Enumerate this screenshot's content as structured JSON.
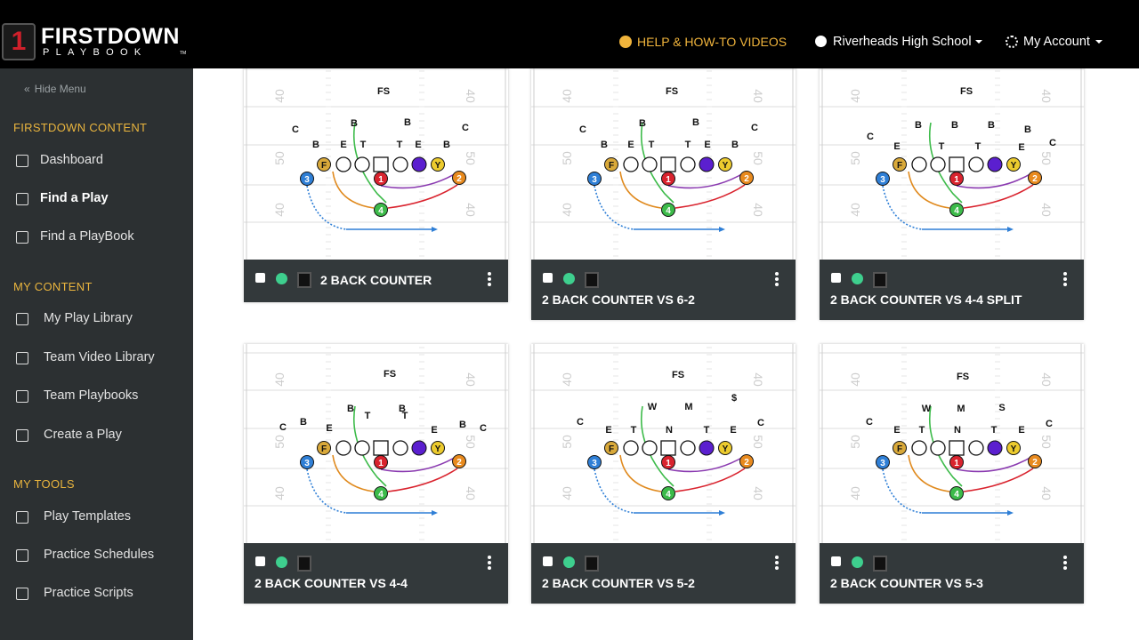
{
  "header": {
    "logo": {
      "mark": "1",
      "name": "FIRSTDOWN",
      "sub": "PLAYBOOK",
      "tm": "TM"
    },
    "help": "HELP & HOW-TO VIDEOS",
    "team": "Riverheads High School",
    "account": "My Account"
  },
  "sidebar": {
    "hide": "Hide Menu",
    "sections": [
      {
        "title": "FIRSTDOWN CONTENT",
        "items": [
          "Dashboard",
          "Find a Play",
          "Find a PlayBook"
        ]
      },
      {
        "title": "MY CONTENT",
        "items": [
          "My Play Library",
          "Team Video Library",
          "Team Playbooks",
          "Create a Play"
        ]
      },
      {
        "title": "MY TOOLS",
        "items": [
          "Play Templates",
          "Practice Schedules",
          "Practice Scripts"
        ]
      }
    ]
  },
  "diagram": {
    "field_numbers": [
      "40",
      "50",
      "40"
    ],
    "offense": [
      "F",
      "Y",
      "3",
      "1",
      "2",
      "4"
    ]
  },
  "plays": [
    {
      "title": "2 BACK COUNTER",
      "defense": [
        "FS",
        "B",
        "B",
        "C",
        "B",
        "E",
        "T",
        "T",
        "E",
        "B",
        "C"
      ]
    },
    {
      "title": "2 BACK COUNTER VS 6-2",
      "defense": [
        "FS",
        "B",
        "B",
        "C",
        "B",
        "E",
        "T",
        "T",
        "E",
        "B",
        "C"
      ]
    },
    {
      "title": "2 BACK COUNTER VS 4-4 SPLIT",
      "defense": [
        "FS",
        "B",
        "B",
        "B",
        "B",
        "C",
        "E",
        "T",
        "T",
        "E",
        "C"
      ]
    },
    {
      "title": "2 BACK COUNTER VS 4-4",
      "defense": [
        "FS",
        "B",
        "B",
        "B",
        "C",
        "C",
        "B",
        "E",
        "T",
        "T",
        "E"
      ]
    },
    {
      "title": "2 BACK COUNTER VS 5-2",
      "defense": [
        "FS",
        "W",
        "M",
        "$",
        "C",
        "C",
        "E",
        "T",
        "N",
        "T",
        "E"
      ]
    },
    {
      "title": "2 BACK COUNTER VS 5-3",
      "defense": [
        "FS",
        "W",
        "M",
        "S",
        "C",
        "C",
        "E",
        "T",
        "N",
        "T",
        "E"
      ]
    }
  ]
}
